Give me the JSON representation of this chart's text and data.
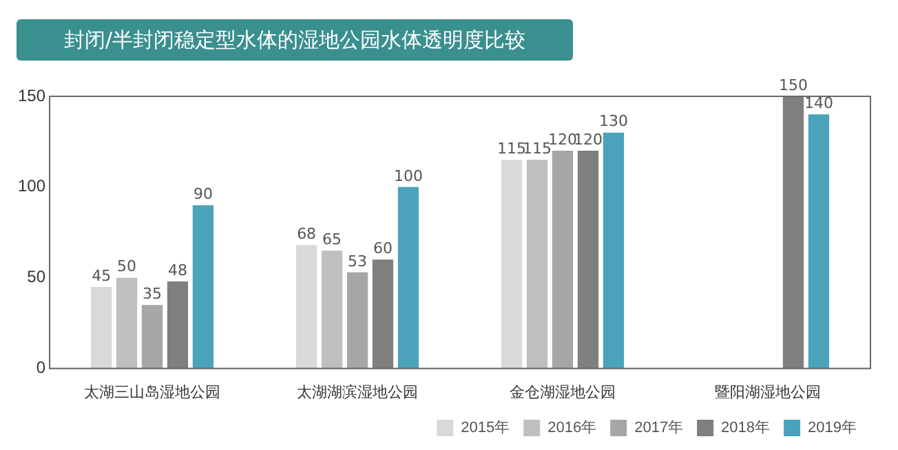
{
  "chart_data": {
    "type": "bar",
    "title": "封闭/半封闭稳定型水体的湿地公园水体透明度比较",
    "categories": [
      "太湖三山岛湿地公园",
      "太湖湖滨湿地公园",
      "金仓湖湿地公园",
      "暨阳湖湿地公园"
    ],
    "series": [
      {
        "name": "2015年",
        "color": "#d9d9d9",
        "values": [
          45,
          68,
          115,
          null
        ]
      },
      {
        "name": "2016年",
        "color": "#bfbfbf",
        "values": [
          50,
          65,
          115,
          null
        ]
      },
      {
        "name": "2017年",
        "color": "#a6a6a6",
        "values": [
          35,
          53,
          120,
          null
        ]
      },
      {
        "name": "2018年",
        "color": "#7f7f7f",
        "values": [
          48,
          60,
          120,
          150
        ]
      },
      {
        "name": "2019年",
        "color": "#4aa3bb",
        "values": [
          90,
          100,
          130,
          140
        ]
      }
    ],
    "ylim": [
      0,
      150
    ],
    "yticks": [
      0,
      50,
      100,
      150
    ],
    "grid": false,
    "legend": "bottom right",
    "data_labels": true
  }
}
